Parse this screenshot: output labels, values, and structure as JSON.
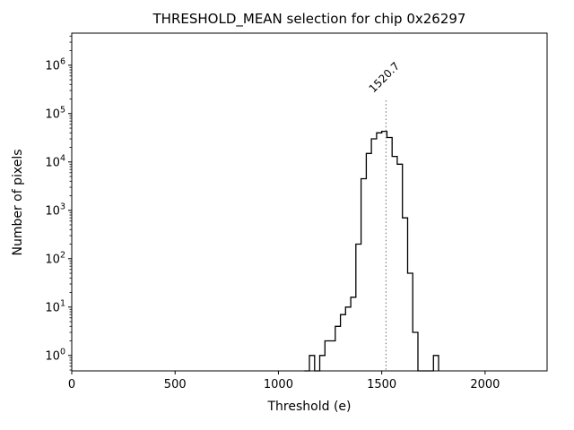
{
  "chart_data": {
    "type": "line",
    "subtype": "step-histogram",
    "title": "THRESHOLD_MEAN selection for chip 0x26297",
    "xlabel": "Threshold (e)",
    "ylabel": "Number of pixels",
    "yscale": "log",
    "grid": false,
    "legend": null,
    "xlim": [
      0,
      2300
    ],
    "ylim": [
      0.48,
      4600000
    ],
    "x_ticks": [
      0,
      500,
      1000,
      1500,
      2000
    ],
    "y_tick_base": "10",
    "y_ticks_exponents": [
      0,
      1,
      2,
      3,
      4,
      5,
      6
    ],
    "bin_edges": [
      1125,
      1150,
      1175,
      1200,
      1225,
      1250,
      1275,
      1300,
      1325,
      1350,
      1375,
      1400,
      1425,
      1450,
      1475,
      1500,
      1525,
      1550,
      1575,
      1600,
      1625,
      1650,
      1675,
      1700,
      1725,
      1750,
      1775
    ],
    "counts": [
      0,
      1,
      0,
      1,
      2,
      2,
      4,
      7,
      10,
      16,
      200,
      4500,
      15000,
      30000,
      40000,
      43000,
      32000,
      13000,
      9000,
      700,
      50,
      3,
      0,
      0,
      0,
      1
    ],
    "line_color": "#000000",
    "background_color": "#ffffff",
    "vline": {
      "x": 1520.7,
      "label": "1520.7",
      "color": "#808080",
      "style": "dotted"
    }
  }
}
